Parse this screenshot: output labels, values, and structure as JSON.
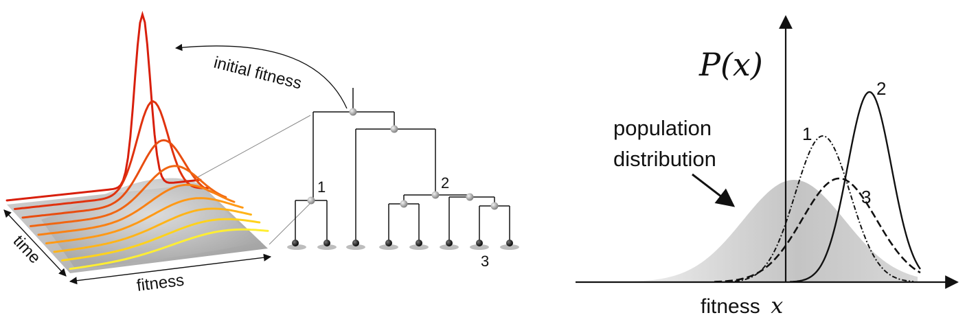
{
  "left_panel": {
    "time_label": "time",
    "fitness_label": "fitness",
    "arrow_label": "initial fitness",
    "curve_colors": [
      "#ffee33",
      "#ffd21c",
      "#ffb419",
      "#ff9a16",
      "#f98114",
      "#f06612",
      "#e84d10",
      "#e0320e",
      "#d81f0c"
    ]
  },
  "tree": {
    "node_labels": {
      "n1": "1",
      "n2": "2",
      "n3": "3"
    },
    "node_color": "#999999",
    "leaf_color": "#111111"
  },
  "right_panel": {
    "y_axis_label": "P(x)",
    "x_axis_label_text": "fitness",
    "x_axis_label_var": "x",
    "population_label_line1": "population",
    "population_label_line2": "distribution",
    "curve_labels": {
      "c1": "1",
      "c2": "2",
      "c3": "3"
    }
  }
}
